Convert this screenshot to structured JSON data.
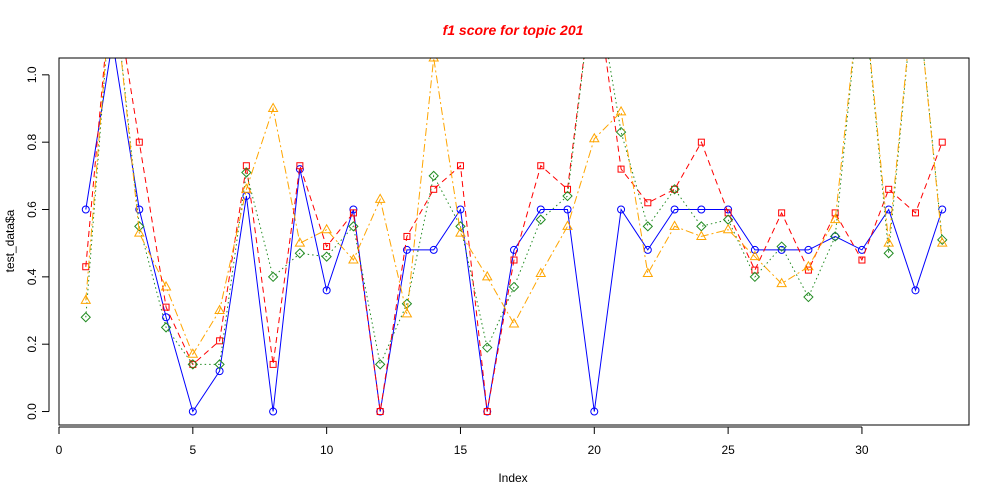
{
  "chart_data": {
    "type": "line",
    "title": "f1 score for topic 201",
    "title_color": "#ff0000",
    "xlabel": "Index",
    "ylabel": "test_data$a",
    "xlim": [
      0,
      34
    ],
    "ylim": [
      -0.04,
      1.05
    ],
    "x_ticks": [
      0,
      5,
      10,
      15,
      20,
      25,
      30
    ],
    "y_ticks": [
      0.0,
      0.2,
      0.4,
      0.6,
      0.8,
      1.0
    ],
    "x_tick_labels": [
      "0",
      "5",
      "10",
      "15",
      "20",
      "25",
      "30"
    ],
    "y_tick_labels": [
      "0.0",
      "0.2",
      "0.4",
      "0.6",
      "0.8",
      "1.0"
    ],
    "grid": false,
    "legend": "none",
    "x": [
      1,
      2,
      3,
      4,
      5,
      6,
      7,
      8,
      9,
      10,
      11,
      12,
      13,
      14,
      15,
      16,
      17,
      18,
      19,
      20,
      21,
      22,
      23,
      24,
      25,
      26,
      27,
      28,
      29,
      30,
      31,
      32,
      33
    ],
    "series": [
      {
        "color": "#0000ff",
        "line_style": "solid",
        "marker": "circle",
        "values": [
          0.6,
          1.1,
          0.6,
          0.28,
          0.0,
          0.12,
          0.64,
          0.0,
          0.72,
          0.36,
          0.6,
          0.0,
          0.48,
          0.48,
          0.6,
          0.0,
          0.48,
          0.6,
          0.6,
          0.0,
          0.6,
          0.48,
          0.6,
          0.6,
          0.6,
          0.48,
          0.48,
          0.48,
          0.52,
          0.48,
          0.6,
          0.36,
          0.6
        ]
      },
      {
        "color": "#ff0000",
        "line_style": "dashed",
        "marker": "square",
        "values": [
          0.43,
          1.3,
          0.8,
          0.31,
          0.14,
          0.21,
          0.73,
          0.14,
          0.73,
          0.49,
          0.59,
          0.0,
          0.52,
          0.66,
          0.73,
          0.0,
          0.45,
          0.73,
          0.66,
          1.3,
          0.72,
          0.62,
          0.66,
          0.8,
          0.59,
          0.42,
          0.59,
          0.42,
          0.59,
          0.45,
          0.66,
          0.59,
          0.8
        ]
      },
      {
        "color": "#228b22",
        "line_style": "dotted",
        "marker": "diamond",
        "values": [
          0.28,
          1.3,
          0.55,
          0.25,
          0.14,
          0.14,
          0.71,
          0.4,
          0.47,
          0.46,
          0.55,
          0.14,
          0.32,
          0.7,
          0.55,
          0.19,
          0.37,
          0.57,
          0.64,
          1.3,
          0.83,
          0.55,
          0.66,
          0.55,
          0.57,
          0.4,
          0.49,
          0.34,
          0.52,
          1.3,
          0.47,
          1.3,
          0.51
        ]
      },
      {
        "color": "#ffa500",
        "line_style": "dashdot",
        "marker": "triangle",
        "values": [
          0.33,
          1.3,
          0.53,
          0.37,
          0.17,
          0.3,
          0.66,
          0.9,
          0.5,
          0.54,
          0.45,
          0.63,
          0.29,
          1.05,
          0.53,
          0.4,
          0.26,
          0.41,
          0.55,
          0.81,
          0.89,
          0.41,
          0.55,
          0.52,
          0.54,
          0.46,
          0.38,
          0.43,
          0.57,
          1.3,
          0.5,
          1.3,
          0.5
        ]
      }
    ]
  }
}
